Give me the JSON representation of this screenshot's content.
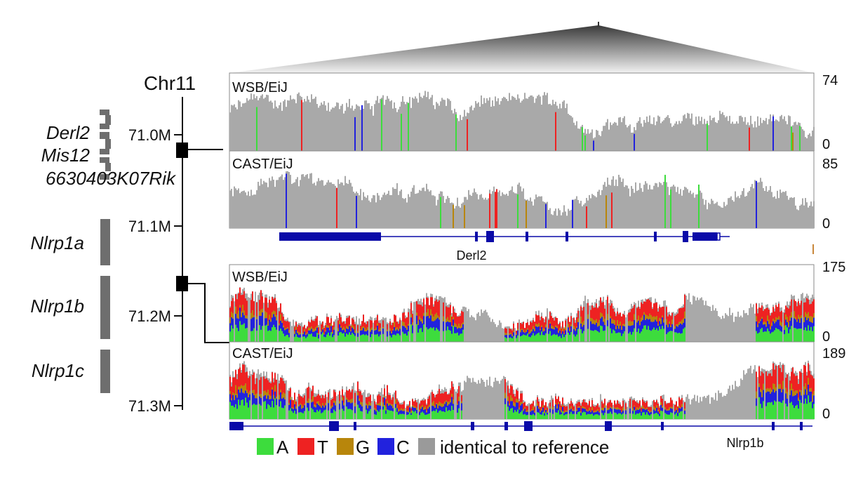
{
  "chromosome": {
    "name": "Chr11",
    "ticks": [
      "71.0M",
      "71.1M",
      "71.2M",
      "71.3M"
    ]
  },
  "genes_left": [
    {
      "name": "Derl2"
    },
    {
      "name": "Mis12"
    },
    {
      "name": "6630403K07Rik"
    },
    {
      "name": "Nlrp1a"
    },
    {
      "name": "Nlrp1b"
    },
    {
      "name": "Nlrp1c"
    }
  ],
  "panels": [
    {
      "strain": "WSB/EiJ",
      "max": "74",
      "min": "0",
      "variant": "low"
    },
    {
      "strain": "CAST/EiJ",
      "max": "85",
      "min": "0",
      "variant": "low"
    },
    {
      "strain": "WSB/EiJ",
      "max": "175",
      "min": "0",
      "variant": "high"
    },
    {
      "strain": "CAST/EiJ",
      "max": "189",
      "min": "0",
      "variant": "high"
    }
  ],
  "gene_tracks": [
    {
      "name": "Derl2"
    },
    {
      "name": "Nlrp1b"
    }
  ],
  "legend": [
    {
      "label": "A",
      "color": "#3ddc3d"
    },
    {
      "label": "T",
      "color": "#ee2222"
    },
    {
      "label": "G",
      "color": "#b8860b"
    },
    {
      "label": "C",
      "color": "#2222dd"
    },
    {
      "label": "identical to reference",
      "color": "#9a9a9a"
    }
  ],
  "colors": {
    "coverage_gray": "#a9a9a9",
    "gene_blue": "#0a0aa8",
    "locus_gray": "#6e6e6e"
  }
}
